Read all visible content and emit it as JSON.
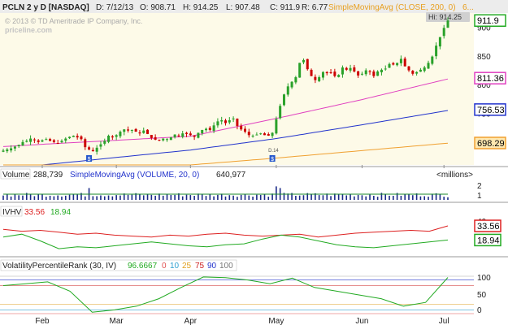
{
  "header": {
    "symbol": "PCLN 2 y D [NASDAQ]",
    "date": "D: 7/12/13",
    "open": "O: 908.71",
    "high": "H: 914.25",
    "low": "L: 907.48",
    "close": "C: 911.9",
    "range": "R: 6.77",
    "overlay_label": "SimpleMovingAvg (CLOSE, 200, 0)",
    "overlay_tail": "6...",
    "copyright": "© 2013 © TD Ameritrade IP Company, Inc.",
    "watermark": "priceline.com",
    "hi_tag": "Hi: 914.25"
  },
  "price_panel": {
    "ticks": [
      "900",
      "850",
      "800",
      "750",
      "700"
    ],
    "last_price": "911.9",
    "sma_pink": "811.36",
    "sma_blue": "756.53",
    "sma_orange": "698.29",
    "event_label": "D.14"
  },
  "volume_panel": {
    "label": "Volume",
    "value": "288,739",
    "sma_label": "SimpleMovingAvg (VOLUME, 20, 0)",
    "sma_value": "640,977",
    "units": "<millions>",
    "ticks": [
      "2",
      "1"
    ]
  },
  "ivhv_panel": {
    "label": "IVHV",
    "iv_value": "33.56",
    "hv_value": "18.94",
    "tick_top": "40",
    "tick_mid": "20"
  },
  "vpr_panel": {
    "label": "VolatilityPercentileRank (30, IV)",
    "value": "96.6667",
    "levels": [
      "0",
      "10",
      "25",
      "75",
      "90",
      "100"
    ],
    "ticks": [
      "100",
      "50",
      "0"
    ]
  },
  "x_axis": {
    "months": [
      "Feb",
      "Mar",
      "Apr",
      "May",
      "Jun",
      "Jul"
    ]
  },
  "colors": {
    "price_bg": "#fdfae8",
    "up": "#2aa12a",
    "down": "#cc0000",
    "sma_pink": "#e040c0",
    "sma_blue": "#2233cc",
    "sma_orange": "#f0a030",
    "iv": "#dd2020",
    "hv": "#22aa22"
  },
  "chart_data": {
    "type": "candlestick",
    "title": "PCLN 2 y D [NASDAQ]",
    "ylim": [
      660,
      925
    ],
    "x_months": [
      "Feb",
      "Mar",
      "Apr",
      "May",
      "Jun",
      "Jul"
    ],
    "trading_days": 115,
    "closes": [
      685,
      687,
      689,
      692,
      695,
      700,
      702,
      706,
      704,
      700,
      703,
      705,
      702,
      700,
      698,
      702,
      706,
      709,
      711,
      708,
      705,
      691,
      687,
      684,
      690,
      696,
      702,
      711,
      708,
      712,
      718,
      722,
      720,
      721,
      718,
      715,
      720,
      714,
      707,
      704,
      703,
      706,
      705,
      708,
      713,
      711,
      715,
      714,
      712,
      709,
      716,
      721,
      723,
      721,
      729,
      736,
      738,
      733,
      738,
      741,
      728,
      722,
      718,
      712,
      711,
      713,
      715,
      712,
      711,
      716,
      740,
      763,
      783,
      797,
      805,
      813,
      838,
      843,
      827,
      815,
      808,
      813,
      822,
      820,
      821,
      815,
      817,
      830,
      826,
      829,
      823,
      816,
      819,
      825,
      822,
      815,
      823,
      826,
      828,
      836,
      835,
      838,
      845,
      832,
      825,
      819,
      822,
      826,
      830,
      838,
      849,
      868,
      883,
      899,
      911.9
    ],
    "series": [
      {
        "name": "SMA 50",
        "values_at_month_starts": [
          692,
          696,
          703,
          710,
          741,
          774,
          810
        ]
      },
      {
        "name": "SMA 100",
        "values_at_month_starts": [
          655,
          660,
          673,
          686,
          706,
          730,
          755
        ]
      },
      {
        "name": "SMA 200",
        "values_at_month_starts": [
          620,
          630,
          645,
          660,
          672,
          685,
          698
        ]
      }
    ],
    "volume_sma": 640977,
    "iv": [
      30,
      28,
      29,
      27,
      25,
      26,
      24,
      23,
      22,
      24,
      23,
      25,
      26,
      24,
      23,
      24,
      25,
      22,
      24,
      26,
      27,
      28,
      29,
      28,
      33.56
    ],
    "hv": [
      22,
      25,
      18,
      10,
      12,
      11,
      13,
      15,
      17,
      15,
      13,
      12,
      14,
      15,
      20,
      24,
      22,
      18,
      14,
      12,
      11,
      13,
      15,
      17,
      18.94
    ],
    "vpr": [
      75,
      80,
      85,
      60,
      4,
      10,
      20,
      40,
      70,
      98,
      96,
      90,
      80,
      95,
      70,
      60,
      50,
      40,
      20,
      30,
      96.6667
    ]
  }
}
